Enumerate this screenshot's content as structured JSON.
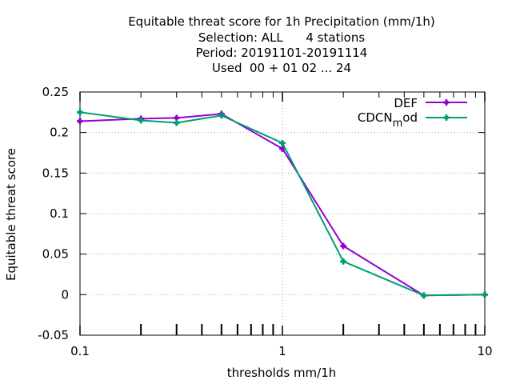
{
  "chart_data": {
    "type": "line",
    "title_lines": [
      "Equitable threat score  for 1h Precipitation (mm/1h)",
      "Selection: ALL      4 stations",
      "Period: 20191101-20191114",
      "Used  00 + 01 02 ... 24"
    ],
    "xlabel": "thresholds mm/1h",
    "ylabel": "Equitable threat score",
    "x_scale": "log",
    "xlim": [
      0.1,
      10
    ],
    "ylim": [
      -0.05,
      0.25
    ],
    "x_ticks": [
      0.1,
      1,
      10
    ],
    "x_tick_labels": [
      "0.1",
      "1",
      "10"
    ],
    "y_ticks": [
      -0.05,
      0,
      0.05,
      0.1,
      0.15,
      0.2,
      0.25
    ],
    "y_tick_labels": [
      "-0.05",
      "0",
      "0.05",
      "0.1",
      "0.15",
      "0.2",
      "0.25"
    ],
    "grid": "dotted at major ticks",
    "legend_position": "top-right",
    "x": [
      0.1,
      0.2,
      0.3,
      0.5,
      1,
      2,
      5,
      10
    ],
    "series": [
      {
        "name": "DEF",
        "color": "#9400d3",
        "values": [
          0.214,
          0.217,
          0.218,
          0.223,
          0.18,
          0.06,
          -0.001,
          0.0
        ]
      },
      {
        "name": "CDCN",
        "name_sub": "m",
        "name_tail": "od",
        "color": "#009e73",
        "values": [
          0.225,
          0.215,
          0.212,
          0.221,
          0.187,
          0.041,
          -0.001,
          0.0
        ]
      }
    ]
  }
}
